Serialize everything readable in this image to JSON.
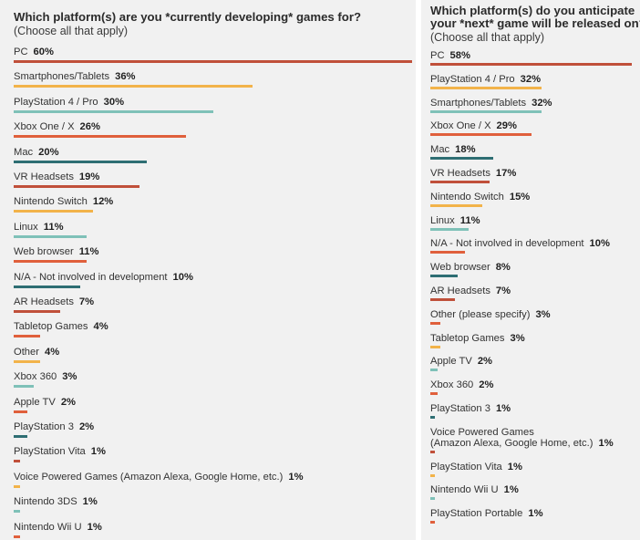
{
  "chart_data": [
    {
      "type": "bar",
      "title": "Which platform(s) are you *currently developing* games for?",
      "subtitle": "(Choose all that apply)",
      "categories": [
        "PC",
        "Smartphones/Tablets",
        "PlayStation 4 / Pro",
        "Xbox One / X",
        "Mac",
        "VR Headsets",
        "Nintendo Switch",
        "Linux",
        "Web browser",
        "N/A - Not involved in development",
        "AR Headsets",
        "Tabletop Games",
        "Other",
        "Xbox 360",
        "Apple TV",
        "PlayStation 3",
        "PlayStation Vita",
        "Voice Powered Games (Amazon Alexa, Google Home, etc.)",
        "Nintendo 3DS",
        "Nintendo Wii U"
      ],
      "values": [
        60,
        36,
        30,
        26,
        20,
        19,
        12,
        11,
        11,
        10,
        7,
        4,
        4,
        3,
        2,
        2,
        1,
        1,
        1,
        1
      ],
      "value_labels": [
        "60%",
        "36%",
        "30%",
        "26%",
        "20%",
        "19%",
        "12%",
        "11%",
        "11%",
        "10%",
        "7%",
        "4%",
        "4%",
        "3%",
        "2%",
        "2%",
        "1%",
        "1%",
        "1%",
        "1%"
      ],
      "colors": [
        "#c0503a",
        "#f2b34a",
        "#7fc1b8",
        "#e0603c",
        "#2e6e73",
        "#c0503a",
        "#f2b34a",
        "#7fc1b8",
        "#e0603c",
        "#2e6e73",
        "#c0503a",
        "#e0603c",
        "#f2b34a",
        "#7fc1b8",
        "#e0603c",
        "#2e6e73",
        "#c0503a",
        "#f2b34a",
        "#7fc1b8",
        "#e0603c"
      ],
      "xlim": [
        0,
        60
      ]
    },
    {
      "type": "bar",
      "title": "Which platform(s) do you anticipate your *next* game will be released on?",
      "title_lines": [
        "Which platform(s) do you anticipate",
        "your *next* game will be released on?"
      ],
      "subtitle": "(Choose all that apply)",
      "categories": [
        "PC",
        "PlayStation 4 / Pro",
        "Smartphones/Tablets",
        "Xbox One / X",
        "Mac",
        "VR Headsets",
        "Nintendo Switch",
        "Linux",
        "N/A - Not involved in development",
        "Web browser",
        "AR Headsets",
        "Other (please specify)",
        "Tabletop Games",
        "Apple TV",
        "Xbox 360",
        "PlayStation 3",
        "Voice Powered Games (Amazon Alexa, Google Home, etc.)",
        "PlayStation Vita",
        "Nintendo Wii U",
        "PlayStation Portable"
      ],
      "category_lines": [
        [
          "PC"
        ],
        [
          "PlayStation 4 / Pro"
        ],
        [
          "Smartphones/Tablets"
        ],
        [
          "Xbox One / X"
        ],
        [
          "Mac"
        ],
        [
          "VR Headsets"
        ],
        [
          "Nintendo Switch"
        ],
        [
          "Linux"
        ],
        [
          "N/A - Not involved in development"
        ],
        [
          "Web browser"
        ],
        [
          "AR Headsets"
        ],
        [
          "Other (please specify)"
        ],
        [
          "Tabletop Games"
        ],
        [
          "Apple TV"
        ],
        [
          "Xbox 360"
        ],
        [
          "PlayStation 3"
        ],
        [
          "Voice Powered Games",
          "(Amazon Alexa, Google Home, etc.)"
        ],
        [
          "PlayStation Vita"
        ],
        [
          "Nintendo Wii U"
        ],
        [
          "PlayStation Portable"
        ]
      ],
      "values": [
        58,
        32,
        32,
        29,
        18,
        17,
        15,
        11,
        10,
        8,
        7,
        3,
        3,
        2,
        2,
        1,
        1,
        1,
        1,
        1
      ],
      "value_labels": [
        "58%",
        "32%",
        "32%",
        "29%",
        "18%",
        "17%",
        "15%",
        "11%",
        "10%",
        "8%",
        "7%",
        "3%",
        "3%",
        "2%",
        "2%",
        "1%",
        "1%",
        "1%",
        "1%",
        "1%"
      ],
      "colors": [
        "#c0503a",
        "#f2b34a",
        "#7fc1b8",
        "#e0603c",
        "#2e6e73",
        "#c0503a",
        "#f2b34a",
        "#7fc1b8",
        "#e0603c",
        "#2e6e73",
        "#c0503a",
        "#e0603c",
        "#f2b34a",
        "#7fc1b8",
        "#e0603c",
        "#2e6e73",
        "#c0503a",
        "#f2b34a",
        "#7fc1b8",
        "#e0603c"
      ],
      "xlim": [
        0,
        58
      ]
    }
  ]
}
